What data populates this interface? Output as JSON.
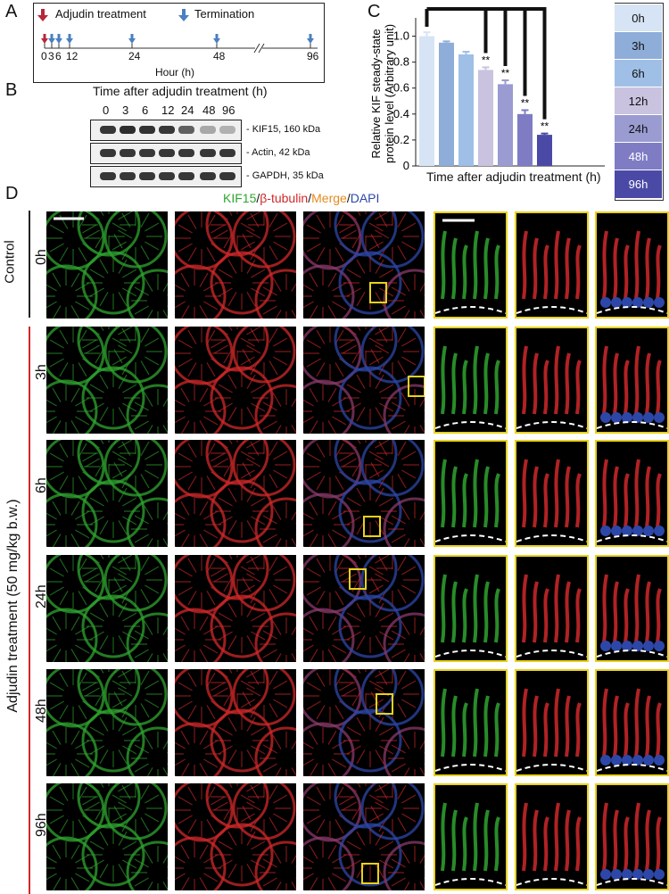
{
  "panel_letters": {
    "a": "A",
    "b": "B",
    "c": "C",
    "d": "D"
  },
  "timeline": {
    "legend_treatment": "Adjudin treatment",
    "legend_termination": "Termination",
    "ticks": [
      "0",
      "3",
      "6",
      "12",
      "24",
      "48",
      "96"
    ],
    "axis_label": "Hour (h)",
    "treatment_color": "#b5283a",
    "termination_color": "#4a7fc1"
  },
  "blot": {
    "title": "Time after adjudin treatment (h)",
    "lanes": [
      "0",
      "3",
      "6",
      "12",
      "24",
      "48",
      "96"
    ],
    "rows": [
      {
        "label": "KIF15, 160 kDa",
        "intensity": [
          0.9,
          0.95,
          0.92,
          0.9,
          0.7,
          0.35,
          0.3
        ]
      },
      {
        "label": "Actin, 42 kDa",
        "intensity": [
          0.9,
          0.9,
          0.9,
          0.9,
          0.9,
          0.9,
          0.9
        ]
      },
      {
        "label": "GAPDH, 35 kDa",
        "intensity": [
          0.9,
          0.9,
          0.9,
          0.9,
          0.9,
          0.9,
          0.9
        ]
      }
    ]
  },
  "chart_data": {
    "type": "bar",
    "categories": [
      "0h",
      "3h",
      "6h",
      "12h",
      "24h",
      "48h",
      "96h"
    ],
    "values": [
      1.0,
      0.95,
      0.86,
      0.74,
      0.63,
      0.4,
      0.24
    ],
    "errors": [
      0.03,
      0.01,
      0.02,
      0.02,
      0.03,
      0.03,
      0.01
    ],
    "significance": [
      "",
      "",
      "",
      "**",
      "**",
      "**",
      "**"
    ],
    "colors": [
      "#d6e4f5",
      "#8fadd9",
      "#9fbfe6",
      "#c9c3e0",
      "#9a9bd1",
      "#7f7cc4",
      "#4a4aa6"
    ],
    "ylabel": "Relative KIF steady-state protein level (Arbitrary unit)",
    "ylabel_line1": "Relative KIF steady-state",
    "ylabel_line2": "protein level (Arbitrary unit)",
    "xlabel": "Time after adjudin treatment (h)",
    "ylim": [
      0,
      1.1
    ],
    "yticks": [
      "0",
      "0.2",
      "0.4",
      "0.6",
      "0.8",
      "1.0"
    ],
    "legend_position": "right"
  },
  "microscopy": {
    "header_kif15": "KIF15",
    "header_sep1": "/",
    "header_tubulin": "β-tubulin",
    "header_sep2": "/",
    "header_merge": "Merge",
    "header_sep3": "/",
    "header_dapi": "DAPI",
    "color_kif15": "#2fa52f",
    "color_tubulin": "#d0282a",
    "color_merge": "#e58a1f",
    "color_dapi": "#2d47a8",
    "control_label": "Control",
    "treatment_label": "Adjudin treatment (50 mg/kg b.w.)",
    "rows": [
      "0h",
      "3h",
      "6h",
      "24h",
      "48h",
      "96h"
    ]
  }
}
